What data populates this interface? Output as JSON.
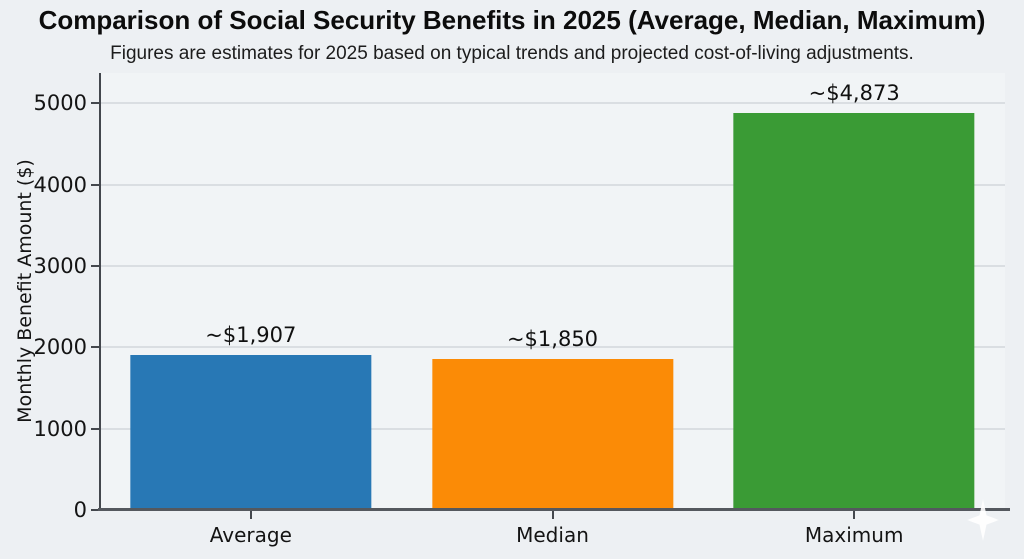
{
  "page": {
    "background": "#edf0f3",
    "plot_background": "#f1f4f6",
    "gridline_color": "#dadee2",
    "spine_color": "#43474d"
  },
  "chart_data": {
    "type": "bar",
    "title": "Comparison of Social Security Benefits in 2025 (Average, Median, Maximum)",
    "subtitle": "Figures are estimates for 2025 based on typical trends and projected cost-of-living adjustments.",
    "xlabel": "",
    "ylabel": "Monthly Benefit Amount ($)",
    "categories": [
      "Average",
      "Median",
      "Maximum"
    ],
    "values": [
      1907,
      1850,
      4873
    ],
    "value_labels": [
      "~$1,907",
      "~$1,850",
      "~$4,873"
    ],
    "bar_colors": [
      "#2878b5",
      "#fb8b06",
      "#3a9b35"
    ],
    "yticks": [
      0,
      1000,
      2000,
      3000,
      4000,
      5000
    ],
    "ylim": [
      0,
      5370
    ],
    "grid": "horizontal",
    "legend": "none"
  },
  "watermark": {
    "shape": "four-pointed-sparkle",
    "color": "#ffffff"
  }
}
